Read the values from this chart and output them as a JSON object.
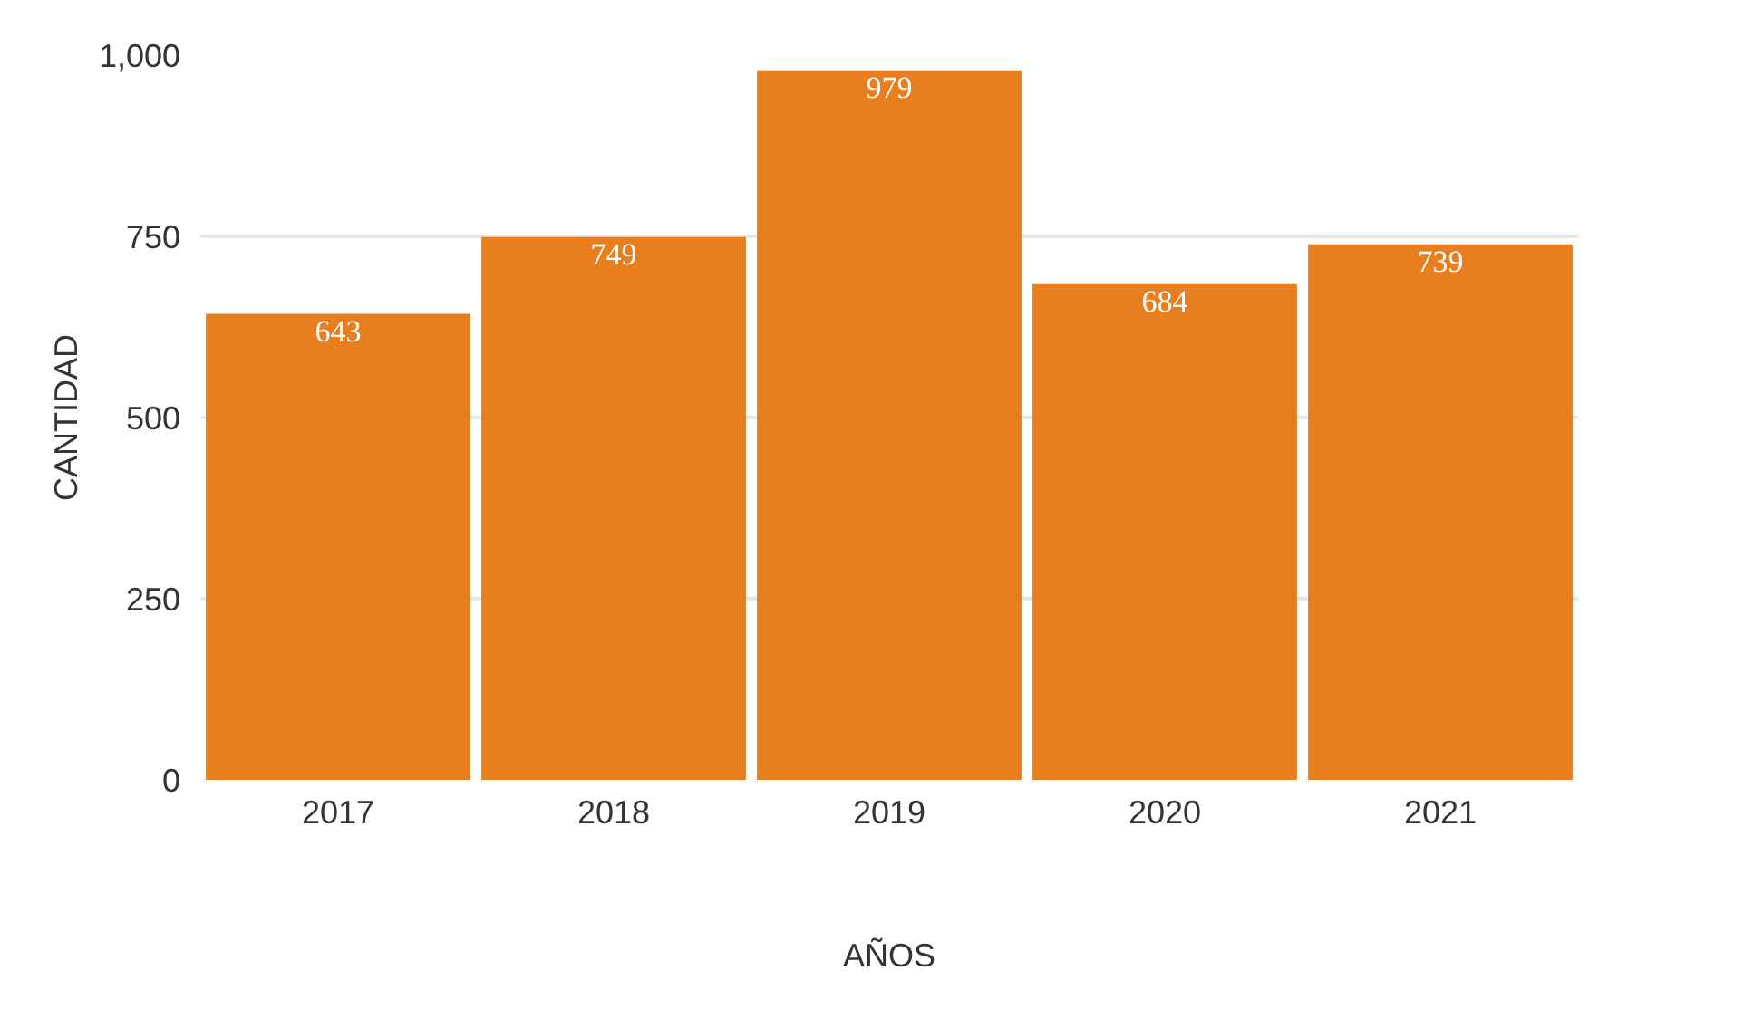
{
  "chart_data": {
    "type": "bar",
    "xlabel": "AÑOS",
    "ylabel": "CANTIDAD",
    "categories": [
      "2017",
      "2018",
      "2019",
      "2020",
      "2021"
    ],
    "values": [
      643,
      749,
      979,
      684,
      739
    ],
    "color": "#e87e1e",
    "ylim": [
      0,
      1000
    ],
    "yticks": [
      0,
      250,
      500,
      750,
      {
        "value": 1000,
        "label": "1,000"
      }
    ],
    "grid": "y",
    "data_labels": true
  }
}
